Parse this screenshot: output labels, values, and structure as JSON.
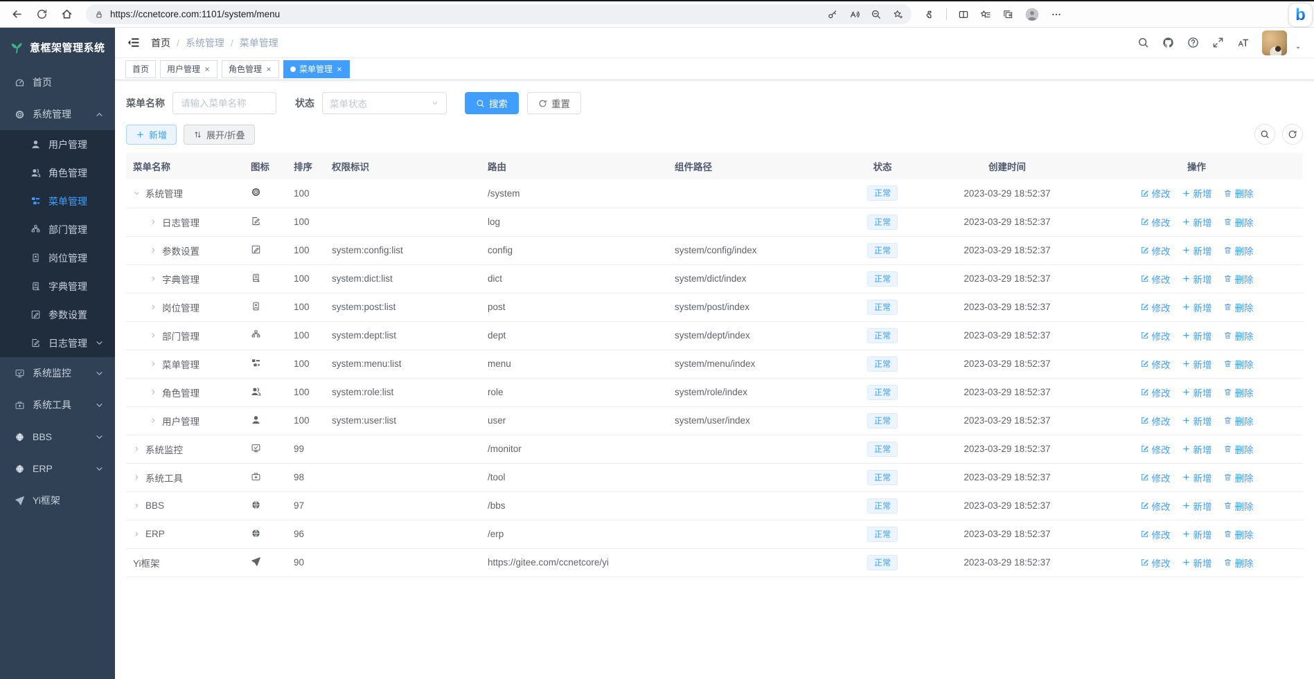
{
  "colors": {
    "primary": "#409eff",
    "sidebar_bg": "#304156",
    "submenu_bg": "#1f2d3d",
    "status_tag_bg": "#ecf5ff",
    "logo_green": "#36b789"
  },
  "browser": {
    "url": "https://ccnetcore.com:1101/system/menu",
    "left_icons": [
      "arrow-left-icon",
      "refresh-icon",
      "home-icon"
    ],
    "pill_lock_icon": "lock-icon",
    "pill_icons": [
      "key-icon",
      "read-aloud-icon",
      "zoom-out-icon",
      "star-add-icon"
    ],
    "right_icons": [
      "extensions-icon",
      "separator",
      "split-screen-icon",
      "favorites-icon",
      "collections-icon",
      "person-icon",
      "more-icon"
    ],
    "bing_label": "b"
  },
  "app_title": "意框架管理系统",
  "sidebar": {
    "items": [
      {
        "key": "home",
        "icon": "dashboard-icon",
        "label": "首页",
        "level": 0
      },
      {
        "key": "system",
        "icon": "gear-icon",
        "label": "系统管理",
        "level": 0,
        "caret": "up"
      },
      {
        "key": "user",
        "icon": "user-icon",
        "label": "用户管理",
        "level": 1
      },
      {
        "key": "role",
        "icon": "users-icon",
        "label": "角色管理",
        "level": 1
      },
      {
        "key": "menu",
        "icon": "menu-icon",
        "label": "菜单管理",
        "level": 1,
        "active": true
      },
      {
        "key": "dept",
        "icon": "tree-icon",
        "label": "部门管理",
        "level": 1
      },
      {
        "key": "post",
        "icon": "badge-icon",
        "label": "岗位管理",
        "level": 1
      },
      {
        "key": "dict",
        "icon": "book-icon",
        "label": "字典管理",
        "level": 1
      },
      {
        "key": "config",
        "icon": "edit-icon",
        "label": "参数设置",
        "level": 1
      },
      {
        "key": "log",
        "icon": "log-icon",
        "label": "日志管理",
        "level": 1,
        "caret": "down"
      },
      {
        "key": "monitor",
        "icon": "monitor-icon",
        "label": "系统监控",
        "level": 0,
        "caret": "down"
      },
      {
        "key": "tool",
        "icon": "tool-icon",
        "label": "系统工具",
        "level": 0,
        "caret": "down"
      },
      {
        "key": "bbs",
        "icon": "globe-icon",
        "label": "BBS",
        "level": 0,
        "caret": "down"
      },
      {
        "key": "erp",
        "icon": "globe-icon",
        "label": "ERP",
        "level": 0,
        "caret": "down"
      },
      {
        "key": "yi",
        "icon": "plane-icon",
        "label": "Yi框架",
        "level": 0
      }
    ]
  },
  "header": {
    "breadcrumb": [
      "首页",
      "系统管理",
      "菜单管理"
    ],
    "icons": [
      "search-icon",
      "github-icon",
      "question-icon",
      "fullscreen-icon",
      "font-size-icon"
    ]
  },
  "tabs": [
    {
      "key": "home",
      "label": "首页",
      "closable": false,
      "active": false
    },
    {
      "key": "user",
      "label": "用户管理",
      "closable": true,
      "active": false
    },
    {
      "key": "role",
      "label": "角色管理",
      "closable": true,
      "active": false
    },
    {
      "key": "menu",
      "label": "菜单管理",
      "closable": true,
      "active": true
    }
  ],
  "filter": {
    "name_label": "菜单名称",
    "name_placeholder": "请输入菜单名称",
    "status_label": "状态",
    "status_placeholder": "菜单状态",
    "search_label": "搜索",
    "reset_label": "重置"
  },
  "toolbar": {
    "add_label": "新增",
    "toggle_label": "展开/折叠"
  },
  "table": {
    "columns": [
      "菜单名称",
      "图标",
      "排序",
      "权限标识",
      "路由",
      "组件路径",
      "状态",
      "创建时间",
      "操作"
    ],
    "status_normal": "正常",
    "action_edit": "修改",
    "action_add": "新增",
    "action_delete": "删除",
    "rows": [
      {
        "key": "system",
        "name": "系统管理",
        "caret": "down",
        "level": 0,
        "icon": "gear-icon",
        "sort": "100",
        "perm": "",
        "route": "/system",
        "component": "",
        "time": "2023-03-29 18:52:37"
      },
      {
        "key": "log",
        "name": "日志管理",
        "caret": "right",
        "level": 1,
        "icon": "log-icon",
        "sort": "100",
        "perm": "",
        "route": "log",
        "component": "",
        "time": "2023-03-29 18:52:37"
      },
      {
        "key": "config",
        "name": "参数设置",
        "caret": "right",
        "level": 1,
        "icon": "edit-icon",
        "sort": "100",
        "perm": "system:config:list",
        "route": "config",
        "component": "system/config/index",
        "time": "2023-03-29 18:52:37"
      },
      {
        "key": "dict",
        "name": "字典管理",
        "caret": "right",
        "level": 1,
        "icon": "book-icon",
        "sort": "100",
        "perm": "system:dict:list",
        "route": "dict",
        "component": "system/dict/index",
        "time": "2023-03-29 18:52:37"
      },
      {
        "key": "post",
        "name": "岗位管理",
        "caret": "right",
        "level": 1,
        "icon": "badge-icon",
        "sort": "100",
        "perm": "system:post:list",
        "route": "post",
        "component": "system/post/index",
        "time": "2023-03-29 18:52:37"
      },
      {
        "key": "dept",
        "name": "部门管理",
        "caret": "right",
        "level": 1,
        "icon": "tree-icon",
        "sort": "100",
        "perm": "system:dept:list",
        "route": "dept",
        "component": "system/dept/index",
        "time": "2023-03-29 18:52:37"
      },
      {
        "key": "menu",
        "name": "菜单管理",
        "caret": "right",
        "level": 1,
        "icon": "menu-icon",
        "sort": "100",
        "perm": "system:menu:list",
        "route": "menu",
        "component": "system/menu/index",
        "time": "2023-03-29 18:52:37"
      },
      {
        "key": "role",
        "name": "角色管理",
        "caret": "right",
        "level": 1,
        "icon": "users-icon",
        "sort": "100",
        "perm": "system:role:list",
        "route": "role",
        "component": "system/role/index",
        "time": "2023-03-29 18:52:37"
      },
      {
        "key": "user",
        "name": "用户管理",
        "caret": "right",
        "level": 1,
        "icon": "user-icon",
        "sort": "100",
        "perm": "system:user:list",
        "route": "user",
        "component": "system/user/index",
        "time": "2023-03-29 18:52:37"
      },
      {
        "key": "monitor",
        "name": "系统监控",
        "caret": "right",
        "level": 0,
        "icon": "monitor-icon",
        "sort": "99",
        "perm": "",
        "route": "/monitor",
        "component": "",
        "time": "2023-03-29 18:52:37"
      },
      {
        "key": "tool",
        "name": "系统工具",
        "caret": "right",
        "level": 0,
        "icon": "tool-icon",
        "sort": "98",
        "perm": "",
        "route": "/tool",
        "component": "",
        "time": "2023-03-29 18:52:37"
      },
      {
        "key": "bbs",
        "name": "BBS",
        "caret": "right",
        "level": 0,
        "icon": "globe-icon",
        "sort": "97",
        "perm": "",
        "route": "/bbs",
        "component": "",
        "time": "2023-03-29 18:52:37"
      },
      {
        "key": "erp",
        "name": "ERP",
        "caret": "right",
        "level": 0,
        "icon": "globe-icon",
        "sort": "96",
        "perm": "",
        "route": "/erp",
        "component": "",
        "time": "2023-03-29 18:52:37"
      },
      {
        "key": "yi",
        "name": "Yi框架",
        "caret": "none",
        "level": 0,
        "icon": "plane-icon",
        "sort": "90",
        "perm": "",
        "route": "https://gitee.com/ccnetcore/yi",
        "component": "",
        "time": "2023-03-29 18:52:37"
      }
    ]
  }
}
